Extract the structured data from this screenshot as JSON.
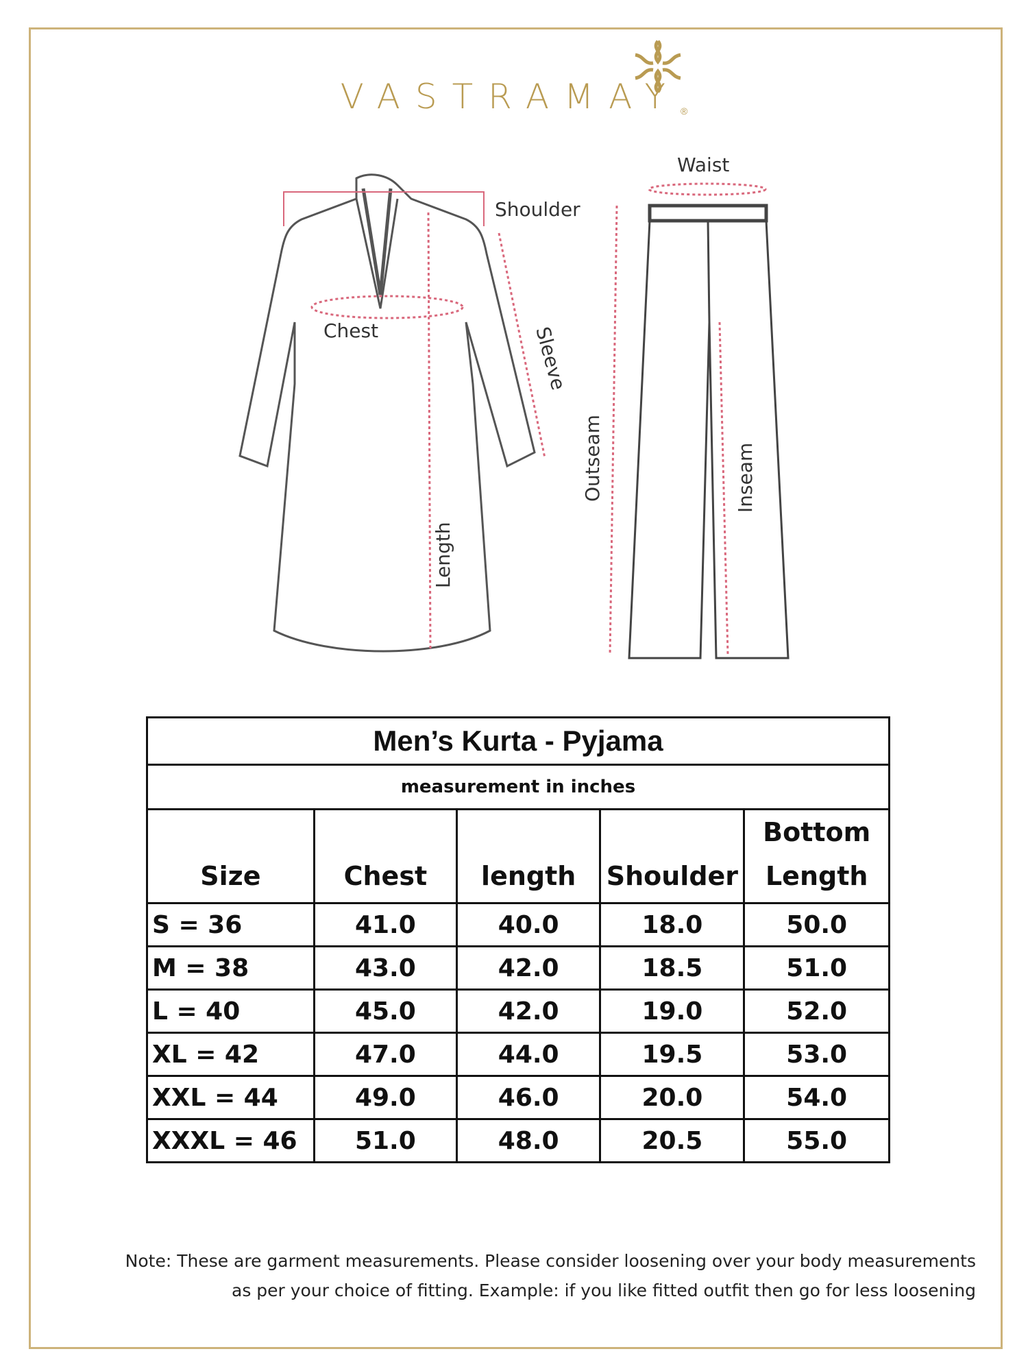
{
  "brand": {
    "name": "VASTRAMAY",
    "registered": "®",
    "color": "#b99b52"
  },
  "diagram": {
    "kurta_labels": {
      "shoulder": "Shoulder",
      "chest": "Chest",
      "sleeve": "Sleeve",
      "length": "Length"
    },
    "pyjama_labels": {
      "waist": "Waist",
      "outseam": "Outseam",
      "inseam": "Inseam"
    },
    "measure_line_color": "#d9687c"
  },
  "table": {
    "title": "Men’s Kurta - Pyjama",
    "subtitle": "measurement in inches",
    "headers": [
      "Size",
      "Chest",
      "length",
      "Shoulder",
      "Bottom Length"
    ],
    "rows": [
      [
        "S = 36",
        "41.0",
        "40.0",
        "18.0",
        "50.0"
      ],
      [
        "M = 38",
        "43.0",
        "42.0",
        "18.5",
        "51.0"
      ],
      [
        "L = 40",
        "45.0",
        "42.0",
        "19.0",
        "52.0"
      ],
      [
        "XL = 42",
        "47.0",
        "44.0",
        "19.5",
        "53.0"
      ],
      [
        "XXL = 44",
        "49.0",
        "46.0",
        "20.0",
        "54.0"
      ],
      [
        "XXXL = 46",
        "51.0",
        "48.0",
        "20.5",
        "55.0"
      ]
    ]
  },
  "note": {
    "line1": "Note: These are garment measurements. Please consider loosening over your body measurements",
    "line2": "as per your choice of fitting. Example: if you like fitted outfit then go for less loosening"
  }
}
